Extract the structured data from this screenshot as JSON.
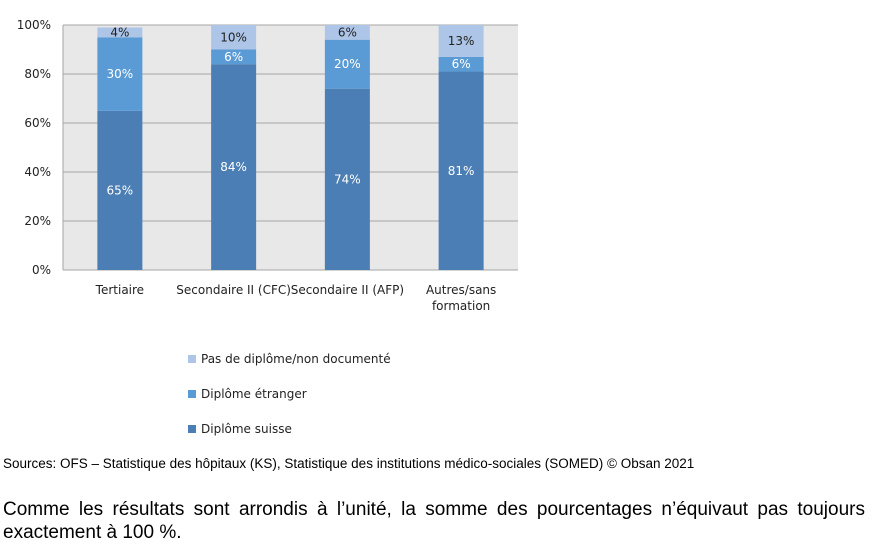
{
  "chart_data": {
    "type": "bar",
    "stacked": true,
    "categories": [
      "Tertiaire",
      "Secondaire II (CFC)",
      "Secondaire II (AFP)",
      "Autres/sans formation"
    ],
    "category_label_lines": [
      [
        "Tertiaire"
      ],
      [
        "Secondaire II (CFC)"
      ],
      [
        "Secondaire II (AFP)"
      ],
      [
        "Autres/sans",
        "formation"
      ]
    ],
    "series": [
      {
        "name": "Diplôme suisse",
        "values": [
          65,
          84,
          74,
          81
        ],
        "color": "#4a7eb4"
      },
      {
        "name": "Diplôme étranger",
        "values": [
          30,
          6,
          20,
          6
        ],
        "color": "#5b9bd5"
      },
      {
        "name": "Pas de diplôme/non documenté",
        "values": [
          4,
          10,
          6,
          13
        ],
        "color": "#adc5e7"
      }
    ],
    "ylim": [
      0,
      100
    ],
    "yticks": [
      0,
      20,
      40,
      60,
      80,
      100
    ],
    "ytick_labels": [
      "0%",
      "20%",
      "40%",
      "60%",
      "80%",
      "100%"
    ],
    "value_suffix": "%",
    "grid": true,
    "plot_background": "#e8e8e8",
    "legend_position": "bottom"
  },
  "legend": {
    "items": [
      {
        "label": "Pas de diplôme/non documenté",
        "color": "#adc5e7"
      },
      {
        "label": "Diplôme étranger",
        "color": "#5b9bd5"
      },
      {
        "label": "Diplôme suisse",
        "color": "#4a7eb4"
      }
    ]
  },
  "source_text": "Sources: OFS – Statistique des hôpitaux (KS), Statistique des institutions médico-sociales (SOMED) © Obsan 2021",
  "note_text": "Comme les résultats sont arrondis à l’unité, la somme des pourcentages n’équivaut pas toujours exactement à 100 %."
}
